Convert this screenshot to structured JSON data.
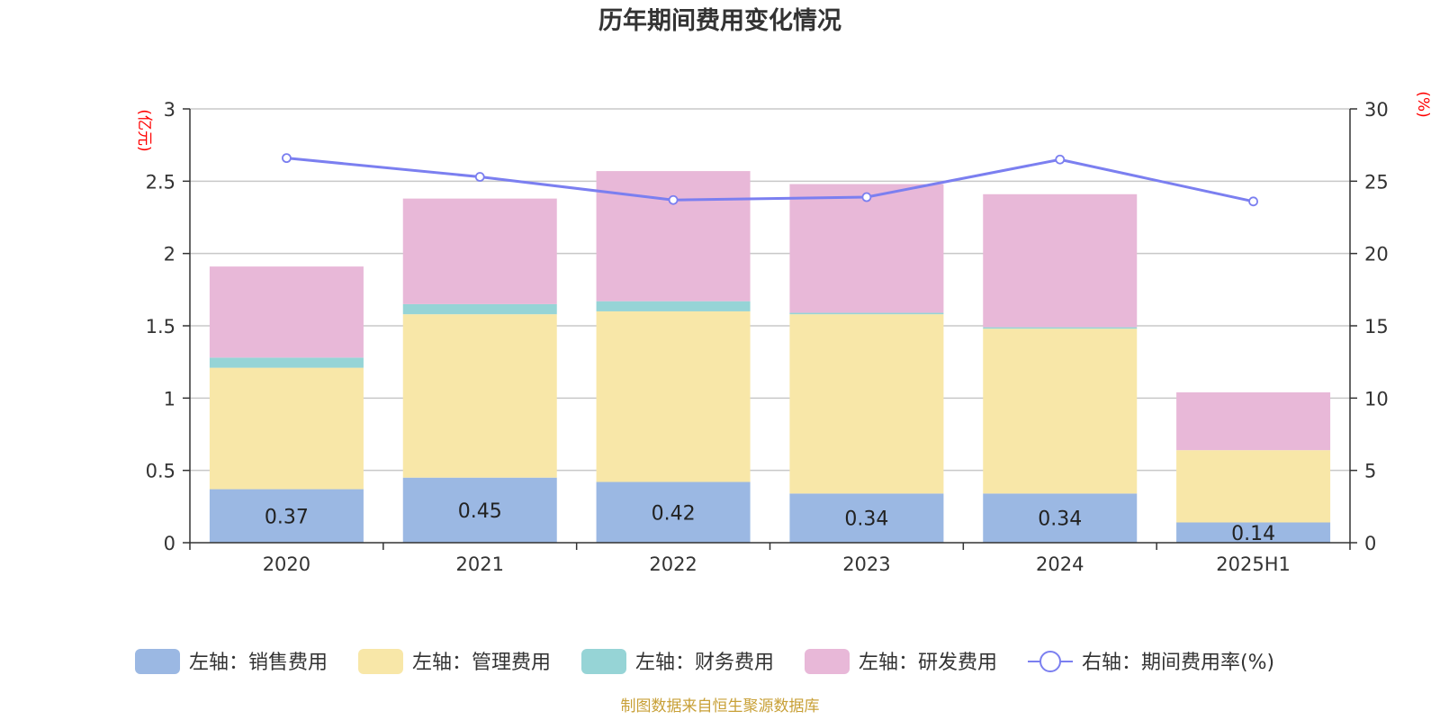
{
  "chart_data": {
    "type": "bar",
    "stacked": true,
    "title": "历年期间费用变化情况",
    "categories": [
      "2020",
      "2021",
      "2022",
      "2023",
      "2024",
      "2025H1"
    ],
    "left_axis": {
      "unit": "(亿元)",
      "ylim": [
        0,
        3
      ],
      "ticks": [
        "0",
        "0.5",
        "1",
        "1.5",
        "2",
        "2.5",
        "3"
      ]
    },
    "right_axis": {
      "unit": "(%)",
      "ylim": [
        0,
        30
      ],
      "ticks": [
        "0",
        "5",
        "10",
        "15",
        "20",
        "25",
        "30"
      ]
    },
    "grid": true,
    "legend_position": "bottom",
    "series": [
      {
        "name": "左轴：销售费用",
        "type": "bar",
        "axis": "left",
        "color": "#9bb8e3",
        "values": [
          0.37,
          0.45,
          0.42,
          0.34,
          0.34,
          0.14
        ],
        "labels": [
          "0.37",
          "0.45",
          "0.42",
          "0.34",
          "0.34",
          "0.14"
        ]
      },
      {
        "name": "左轴：管理费用",
        "type": "bar",
        "axis": "left",
        "color": "#f8e7a8",
        "values": [
          0.84,
          1.13,
          1.18,
          1.24,
          1.14,
          0.5
        ]
      },
      {
        "name": "左轴：财务费用",
        "type": "bar",
        "axis": "left",
        "color": "#96d4d6",
        "values": [
          0.07,
          0.07,
          0.07,
          0.01,
          0.01,
          0.0
        ]
      },
      {
        "name": "左轴：研发费用",
        "type": "bar",
        "axis": "left",
        "color": "#e8b8d8",
        "values": [
          0.63,
          0.73,
          0.9,
          0.89,
          0.92,
          0.4
        ]
      },
      {
        "name": "右轴：期间费用率(%)",
        "type": "line",
        "axis": "right",
        "color": "#7b7ff0",
        "values": [
          26.6,
          25.3,
          23.7,
          23.9,
          26.5,
          23.6
        ]
      }
    ],
    "source": "制图数据来自恒生聚源数据库"
  }
}
